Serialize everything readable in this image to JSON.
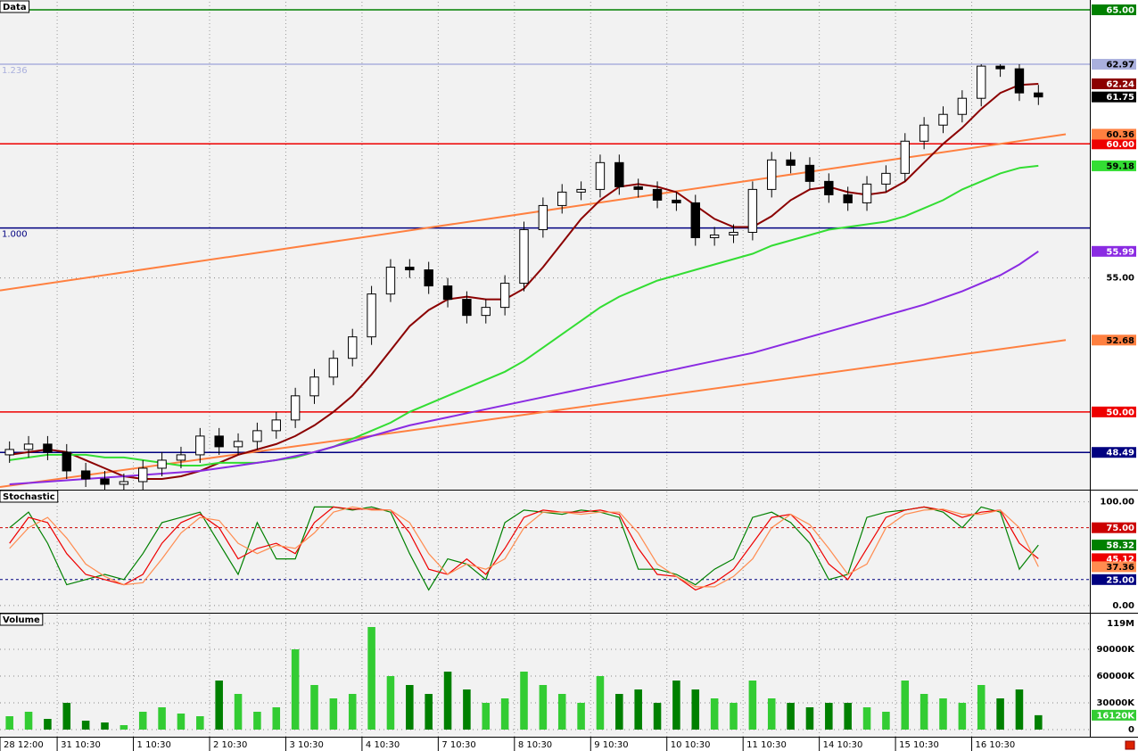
{
  "chart_data": [
    {
      "type": "candlestick",
      "title": "Data",
      "categories": [
        "28 12:00",
        null,
        null,
        "31 10:30",
        null,
        null,
        null,
        "1 10:30",
        null,
        null,
        null,
        "2 10:30",
        null,
        null,
        null,
        "3 10:30",
        null,
        null,
        null,
        "4 10:30",
        null,
        null,
        null,
        "7 10:30",
        null,
        null,
        null,
        "8 10:30",
        null,
        null,
        null,
        "9 10:30",
        null,
        null,
        null,
        "10 10:30",
        null,
        null,
        null,
        "11 10:30",
        null,
        null,
        null,
        "14 10:30",
        null,
        null,
        null,
        "15 10:30",
        null,
        null,
        null,
        "16 10:30",
        null,
        null,
        null
      ],
      "open": [
        48.4,
        48.6,
        48.8,
        48.5,
        47.8,
        47.5,
        47.3,
        47.4,
        47.9,
        48.2,
        48.4,
        49.1,
        48.7,
        48.9,
        49.3,
        49.7,
        50.6,
        51.3,
        52.0,
        52.8,
        54.4,
        55.4,
        55.3,
        54.7,
        54.2,
        53.6,
        53.9,
        54.8,
        56.8,
        57.7,
        58.2,
        58.3,
        59.3,
        58.4,
        58.3,
        57.9,
        57.8,
        56.5,
        56.6,
        56.7,
        58.3,
        59.4,
        59.2,
        58.6,
        58.1,
        57.8,
        58.5,
        58.9,
        60.1,
        60.7,
        61.1,
        61.7,
        62.9,
        62.8,
        61.9
      ],
      "high": [
        48.9,
        49.1,
        49.1,
        48.8,
        48.1,
        47.8,
        47.7,
        48.2,
        48.5,
        48.7,
        49.4,
        49.4,
        49.2,
        49.6,
        50.0,
        50.9,
        51.6,
        52.3,
        53.1,
        54.7,
        55.7,
        55.7,
        55.6,
        55.0,
        54.5,
        54.2,
        55.1,
        57.1,
        58.0,
        58.5,
        58.6,
        59.6,
        59.6,
        58.7,
        58.6,
        58.2,
        58.1,
        56.9,
        57.0,
        58.6,
        59.7,
        59.7,
        59.5,
        58.9,
        58.4,
        58.8,
        59.2,
        60.4,
        61.0,
        61.4,
        62.0,
        62.97,
        62.97,
        62.97,
        62.2
      ],
      "low": [
        48.1,
        48.3,
        48.2,
        47.5,
        47.2,
        47.1,
        47.1,
        47.1,
        47.6,
        47.9,
        48.1,
        48.4,
        48.4,
        48.6,
        49.0,
        49.4,
        50.3,
        51.0,
        51.7,
        52.5,
        54.1,
        55.0,
        54.4,
        53.9,
        53.3,
        53.3,
        53.6,
        54.5,
        56.5,
        57.4,
        57.9,
        58.0,
        58.1,
        58.0,
        57.6,
        57.5,
        56.2,
        56.2,
        56.3,
        56.4,
        58.0,
        58.9,
        58.3,
        57.8,
        57.5,
        57.5,
        58.2,
        58.6,
        59.8,
        60.4,
        60.8,
        61.4,
        62.5,
        61.6,
        61.45
      ],
      "close": [
        48.6,
        48.8,
        48.5,
        47.8,
        47.5,
        47.3,
        47.4,
        47.9,
        48.2,
        48.4,
        49.1,
        48.7,
        48.9,
        49.3,
        49.7,
        50.6,
        51.3,
        52.0,
        52.8,
        54.4,
        55.4,
        55.3,
        54.7,
        54.2,
        53.6,
        53.9,
        54.8,
        56.8,
        57.7,
        58.2,
        58.3,
        59.3,
        58.4,
        58.3,
        57.9,
        57.8,
        56.5,
        56.6,
        56.7,
        58.3,
        59.4,
        59.2,
        58.6,
        58.1,
        57.8,
        58.5,
        58.9,
        60.1,
        60.7,
        61.1,
        61.7,
        62.9,
        62.8,
        61.9,
        61.75
      ],
      "up_color": "#ffffff",
      "down_color": "#000000",
      "close_label_color": "#000000",
      "series": [
        {
          "color": "#8b0000",
          "values": [
            48.4,
            48.5,
            48.6,
            48.5,
            48.2,
            47.9,
            47.6,
            47.5,
            47.5,
            47.6,
            47.8,
            48.1,
            48.4,
            48.6,
            48.8,
            49.1,
            49.5,
            50.0,
            50.6,
            51.4,
            52.3,
            53.2,
            53.8,
            54.2,
            54.3,
            54.2,
            54.2,
            54.6,
            55.4,
            56.3,
            57.2,
            57.9,
            58.4,
            58.5,
            58.4,
            58.2,
            57.7,
            57.2,
            56.9,
            56.9,
            57.3,
            57.9,
            58.3,
            58.4,
            58.2,
            58.1,
            58.2,
            58.6,
            59.3,
            60.0,
            60.6,
            61.3,
            61.9,
            62.2,
            62.24
          ]
        },
        {
          "color": "#33dd33",
          "values": [
            48.2,
            48.3,
            48.4,
            48.4,
            48.4,
            48.3,
            48.3,
            48.2,
            48.1,
            48.0,
            48.0,
            48.1,
            48.1,
            48.1,
            48.2,
            48.3,
            48.5,
            48.7,
            49.0,
            49.3,
            49.6,
            50.0,
            50.3,
            50.6,
            50.9,
            51.2,
            51.5,
            51.9,
            52.4,
            52.9,
            53.4,
            53.9,
            54.3,
            54.6,
            54.9,
            55.1,
            55.3,
            55.5,
            55.7,
            55.9,
            56.2,
            56.4,
            56.6,
            56.8,
            56.9,
            57.0,
            57.1,
            57.3,
            57.6,
            57.9,
            58.3,
            58.6,
            58.9,
            59.1,
            59.18
          ]
        },
        {
          "color": "#8a2be2",
          "values": [
            47.3,
            47.35,
            47.4,
            47.45,
            47.5,
            47.55,
            47.6,
            47.65,
            47.7,
            47.75,
            47.8,
            47.9,
            48.0,
            48.1,
            48.2,
            48.35,
            48.5,
            48.7,
            48.9,
            49.1,
            49.3,
            49.5,
            49.65,
            49.8,
            49.95,
            50.1,
            50.25,
            50.4,
            50.55,
            50.7,
            50.85,
            51.0,
            51.15,
            51.3,
            51.45,
            51.6,
            51.75,
            51.9,
            52.05,
            52.2,
            52.4,
            52.6,
            52.8,
            53.0,
            53.2,
            53.4,
            53.6,
            53.8,
            54.0,
            54.25,
            54.5,
            54.8,
            55.1,
            55.5,
            55.99
          ]
        }
      ],
      "trend_lines": [
        {
          "color": "#ff8040",
          "values": [
            54.53,
            60.36
          ]
        },
        {
          "color": "#ff8040",
          "values": [
            47.2,
            52.68
          ]
        }
      ],
      "levels": [
        {
          "value": 65,
          "label": "65.00",
          "color": "#008000"
        },
        {
          "value": 62.97,
          "name": "1.236",
          "color": "#aab0dd"
        },
        {
          "value": 60,
          "label": "60.00",
          "color": "#ee0000"
        },
        {
          "value": 56.86,
          "name": "1.000",
          "color": "#000080"
        },
        {
          "value": 50,
          "label": "50.00",
          "color": "#ee0000"
        },
        {
          "value": 48.49,
          "color": "#000080"
        }
      ],
      "ylim": [
        47.1,
        65.3
      ],
      "yticks": [
        {
          "value": 55,
          "label": "55.00"
        }
      ],
      "grid": true
    },
    {
      "type": "line",
      "title": "Stochastic",
      "series": [
        {
          "color": "#008000",
          "values": [
            75,
            90,
            60,
            20,
            25,
            30,
            25,
            50,
            80,
            85,
            90,
            60,
            30,
            80,
            45,
            45,
            95,
            95,
            92,
            95,
            90,
            50,
            15,
            45,
            40,
            25,
            80,
            92,
            90,
            88,
            92,
            90,
            85,
            35,
            35,
            30,
            20,
            35,
            45,
            85,
            90,
            80,
            60,
            25,
            30,
            85,
            90,
            92,
            95,
            90,
            75,
            95,
            90,
            35,
            58.32
          ]
        },
        {
          "color": "#ee0000",
          "values": [
            60,
            85,
            80,
            50,
            30,
            25,
            20,
            30,
            60,
            80,
            88,
            75,
            45,
            55,
            60,
            50,
            80,
            95,
            93,
            93,
            92,
            70,
            35,
            30,
            45,
            30,
            55,
            85,
            92,
            90,
            90,
            92,
            88,
            55,
            30,
            28,
            15,
            22,
            35,
            60,
            85,
            88,
            70,
            40,
            25,
            55,
            85,
            92,
            95,
            92,
            85,
            90,
            92,
            60,
            45.12
          ]
        },
        {
          "color": "#ff8c50",
          "values": [
            55,
            75,
            85,
            65,
            40,
            28,
            20,
            22,
            45,
            70,
            85,
            82,
            60,
            50,
            58,
            55,
            70,
            90,
            95,
            92,
            92,
            80,
            50,
            30,
            40,
            35,
            45,
            75,
            90,
            90,
            88,
            90,
            90,
            70,
            40,
            28,
            18,
            18,
            28,
            45,
            75,
            88,
            78,
            55,
            30,
            40,
            75,
            88,
            92,
            93,
            88,
            88,
            92,
            75,
            37.36
          ]
        }
      ],
      "levels": [
        {
          "value": 75,
          "label": "75.00",
          "color": "#cc0000",
          "style": "dashed"
        },
        {
          "value": 25,
          "label": "25.00",
          "color": "#000080",
          "style": "dashed"
        }
      ],
      "ylim": [
        -7,
        110
      ],
      "yticks": [
        {
          "value": 100,
          "label": "100.00"
        },
        {
          "value": 0,
          "label": "0.00"
        }
      ]
    },
    {
      "type": "bar",
      "title": "Volume",
      "values": [
        15000000,
        20000000,
        12000000,
        30000000,
        10000000,
        8000000,
        5000000,
        20000000,
        25000000,
        18000000,
        15000000,
        55000000,
        40000000,
        20000000,
        25000000,
        90000000,
        50000000,
        35000000,
        40000000,
        115000000,
        60000000,
        50000000,
        40000000,
        65000000,
        45000000,
        30000000,
        35000000,
        65000000,
        50000000,
        40000000,
        30000000,
        60000000,
        40000000,
        45000000,
        30000000,
        55000000,
        45000000,
        35000000,
        30000000,
        55000000,
        35000000,
        30000000,
        25000000,
        30000000,
        30000000,
        25000000,
        20000000,
        55000000,
        40000000,
        35000000,
        30000000,
        50000000,
        35000000,
        45000000,
        16120000
      ],
      "value_labels": [
        null,
        null,
        null,
        null,
        null,
        null,
        null,
        null,
        null,
        null,
        null,
        null,
        null,
        null,
        null,
        null,
        null,
        null,
        null,
        null,
        null,
        null,
        null,
        null,
        null,
        null,
        null,
        null,
        null,
        null,
        null,
        null,
        null,
        null,
        null,
        null,
        null,
        null,
        null,
        null,
        null,
        null,
        null,
        null,
        null,
        null,
        null,
        null,
        null,
        null,
        null,
        null,
        null,
        null,
        "16120K"
      ],
      "up_color": "#33cc33",
      "down_color": "#008000",
      "ylim": [
        -8000000,
        129000000
      ],
      "yticks": [
        {
          "value": 119000000,
          "label": "119M"
        },
        {
          "value": 90000000,
          "label": "90000K"
        },
        {
          "value": 60000000,
          "label": "60000K"
        },
        {
          "value": 30000000,
          "label": "30000K"
        },
        0
      ]
    }
  ]
}
